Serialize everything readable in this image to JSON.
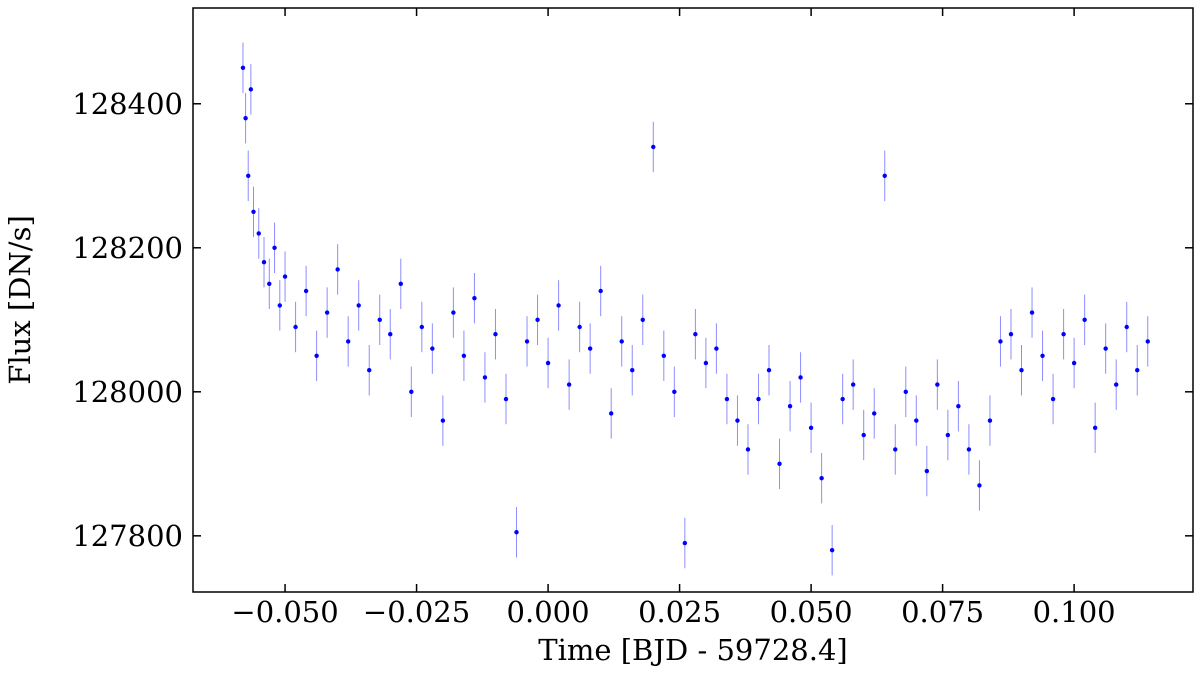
{
  "chart_data": {
    "type": "scatter",
    "xlabel": "Time [BJD - 59728.4]",
    "ylabel": "Flux [DN/s]",
    "color": "#0000ff",
    "xlim": [
      -0.0675,
      0.1226
    ],
    "ylim": [
      127722,
      128533
    ],
    "xticks": [
      {
        "value": -0.05,
        "label": "−0.050"
      },
      {
        "value": -0.025,
        "label": "−0.025"
      },
      {
        "value": 0,
        "label": "0.000"
      },
      0.025,
      {
        "value": 0.05,
        "label": "0.050"
      },
      0.075,
      {
        "value": 0.1,
        "label": "0.100"
      }
    ],
    "yticks": [
      127800,
      128000,
      128200,
      128400
    ],
    "yerr": 35,
    "x": [
      -0.058,
      -0.0575,
      -0.057,
      -0.0565,
      -0.056,
      -0.055,
      -0.054,
      -0.053,
      -0.052,
      -0.051,
      -0.05,
      -0.048,
      -0.046,
      -0.044,
      -0.042,
      -0.04,
      -0.038,
      -0.036,
      -0.034,
      -0.032,
      -0.03,
      -0.028,
      -0.026,
      -0.024,
      -0.022,
      -0.02,
      -0.018,
      -0.016,
      -0.014,
      -0.012,
      -0.01,
      -0.008,
      -0.006,
      -0.004,
      -0.002,
      0,
      0.002,
      0.004,
      0.006,
      0.008,
      0.01,
      0.012,
      0.014,
      0.016,
      0.018,
      0.02,
      0.022,
      0.024,
      0.026,
      0.028,
      0.03,
      0.032,
      0.034,
      0.036,
      0.038,
      0.04,
      0.042,
      0.044,
      0.046,
      0.048,
      0.05,
      0.052,
      0.054,
      0.056,
      0.058,
      0.06,
      0.062,
      0.064,
      0.066,
      0.068,
      0.07,
      0.072,
      0.074,
      0.076,
      0.078,
      0.08,
      0.082,
      0.084,
      0.086,
      0.088,
      0.09,
      0.092,
      0.094,
      0.096,
      0.098,
      0.1,
      0.102,
      0.104,
      0.106,
      0.108,
      0.11,
      0.112,
      0.114
    ],
    "values": [
      128450,
      128380,
      128300,
      128420,
      128250,
      128220,
      128180,
      128150,
      128200,
      128120,
      128160,
      128090,
      128140,
      128050,
      128110,
      128170,
      128070,
      128120,
      128030,
      128100,
      128080,
      128150,
      128000,
      128090,
      128060,
      127960,
      128110,
      128050,
      128130,
      128020,
      128080,
      127990,
      127805,
      128070,
      128100,
      128040,
      128120,
      128010,
      128090,
      128060,
      128140,
      127970,
      128070,
      128030,
      128100,
      128340,
      128050,
      128000,
      127790,
      128080,
      128040,
      128060,
      127990,
      127960,
      127920,
      127990,
      128030,
      127900,
      127980,
      128020,
      127950,
      127880,
      127780,
      127990,
      128010,
      127940,
      127970,
      128300,
      127920,
      128000,
      127960,
      127890,
      128010,
      127940,
      127980,
      127920,
      127870,
      127960,
      128070,
      128080,
      128030,
      128110,
      128050,
      127990,
      128080,
      128040,
      128100,
      127950,
      128060,
      128010,
      128090,
      128030,
      128070
    ]
  }
}
